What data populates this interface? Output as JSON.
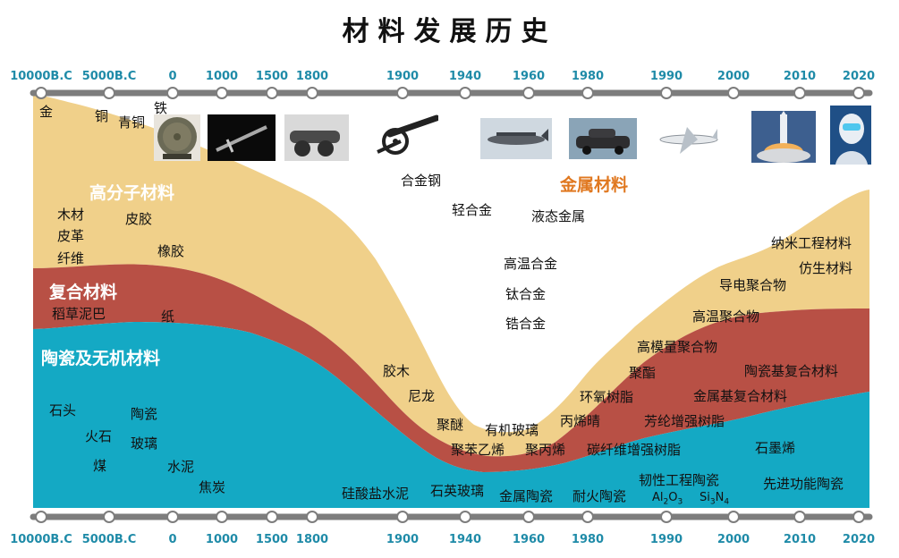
{
  "title": "材料发展历史",
  "timeline": {
    "years": [
      "10000B.C",
      "5000B.C",
      "0",
      "1000",
      "1500",
      "1800",
      "1900",
      "1940",
      "1960",
      "1980",
      "1990",
      "2000",
      "2010",
      "2020"
    ]
  },
  "colors": {
    "polymer": "#f0d08a",
    "composite": "#b85045",
    "ceramic": "#14a9c4",
    "axis": "#7d7d7d",
    "year_text": "#1f8ba8",
    "metal_title": "#e07820"
  },
  "regions": {
    "polymer": "高分子材料",
    "composite": "复合材料",
    "ceramic": "陶瓷及无机材料",
    "metal": "金属材料"
  },
  "labels": {
    "gold": "金",
    "copper": "铜",
    "bronze": "青铜",
    "iron": "铁",
    "wood": "木材",
    "leather": "皮革",
    "fiber": "纤维",
    "hide_glue": "皮胶",
    "rubber": "橡胶",
    "straw_mud": "稻草泥巴",
    "paper": "纸",
    "stone": "石头",
    "flint": "火石",
    "coal": "煤",
    "pottery": "陶瓷",
    "glass": "玻璃",
    "cement": "水泥",
    "coke": "焦炭",
    "alloy_steel": "合金钢",
    "light_alloy": "轻合金",
    "liquid_metal": "液态金属",
    "high_temp_alloy": "高温合金",
    "titanium_alloy": "钛合金",
    "zirconium_alloy": "锆合金",
    "bakelite": "胶木",
    "nylon": "尼龙",
    "polyether": "聚醚",
    "polystyrene": "聚苯乙烯",
    "organic_glass": "有机玻璃",
    "polypropylene": "聚丙烯",
    "acrylonitrile": "丙烯晴",
    "epoxy": "环氧树脂",
    "carbon_fiber_resin": "碳纤维增强树脂",
    "polyester": "聚酯",
    "high_modulus_polymer": "高模量聚合物",
    "high_temp_polymer": "高温聚合物",
    "conductive_polymer": "导电聚合物",
    "nano_materials": "纳米工程材料",
    "biomimetic": "仿生材料",
    "ceramic_matrix": "陶瓷基复合材料",
    "metal_matrix": "金属基复合材料",
    "aramid_resin": "芳纶增强树脂",
    "graphene": "石墨烯",
    "silicate_cement": "硅酸盐水泥",
    "quartz_glass": "石英玻璃",
    "metal_ceramic": "金属陶瓷",
    "refractory": "耐火陶瓷",
    "tough_ceramic": "韧性工程陶瓷",
    "advanced_ceramic": "先进功能陶瓷",
    "al2o3": {
      "a": "Al",
      "b": "2",
      "c": "O",
      "d": "3"
    },
    "si3n4": {
      "a": "Si",
      "b": "3",
      "c": "N",
      "d": "4"
    }
  }
}
